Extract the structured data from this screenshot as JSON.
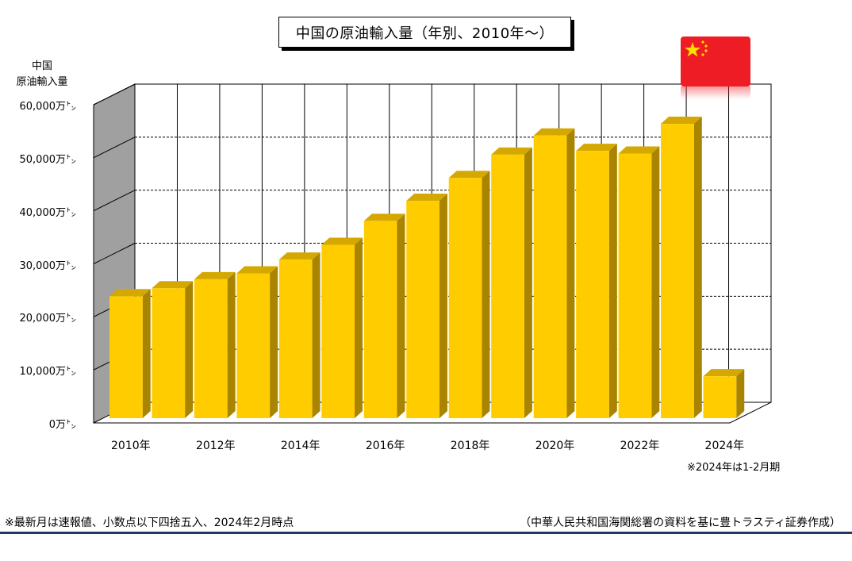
{
  "title": "中国の原油輸入量（年別、2010年～）",
  "ylabel_line1": "中国",
  "ylabel_line2": "原油輸入量",
  "note_period": "※2024年は1-2月期",
  "footnote_left": "※最新月は速報値、小数点以下四捨五入、2024年2月時点",
  "footnote_right": "（中華人民共和国海関総署の資料を基に豊トラスティ証券作成）",
  "flag_icon": "china-flag-icon",
  "colors": {
    "bar_front": "#ffcc00",
    "bar_top": "#d4a800",
    "bar_side": "#a88400",
    "back_wall": "#ffffff",
    "side_wall": "#a0a0a0",
    "bottom_rule": "#1f3864",
    "flag_red": "#ee1c25",
    "flag_star": "#ffde00"
  },
  "chart_data": {
    "type": "bar",
    "style": "3d-column",
    "categories": [
      "2010年",
      "2011年",
      "2012年",
      "2013年",
      "2014年",
      "2015年",
      "2016年",
      "2017年",
      "2018年",
      "2019年",
      "2020年",
      "2021年",
      "2022年",
      "2023年",
      "2024年"
    ],
    "tick_labels": [
      "2010年",
      "2012年",
      "2014年",
      "2016年",
      "2018年",
      "2020年",
      "2022年",
      "2024年"
    ],
    "series": [
      {
        "values": [
          23900,
          25400,
          27100,
          28200,
          30800,
          33600,
          38100,
          41900,
          46200,
          50600,
          54200,
          51300,
          50800,
          56400,
          8800
        ]
      }
    ],
    "ylim": [
      0,
      60000
    ],
    "yticks": [
      "0万㌧",
      "10,000万㌧",
      "20,000万㌧",
      "30,000万㌧",
      "40,000万㌧",
      "50,000万㌧",
      "60,000万㌧"
    ],
    "ytick_values": [
      0,
      10000,
      20000,
      30000,
      40000,
      50000,
      60000
    ],
    "grid": true,
    "legend": "none"
  }
}
